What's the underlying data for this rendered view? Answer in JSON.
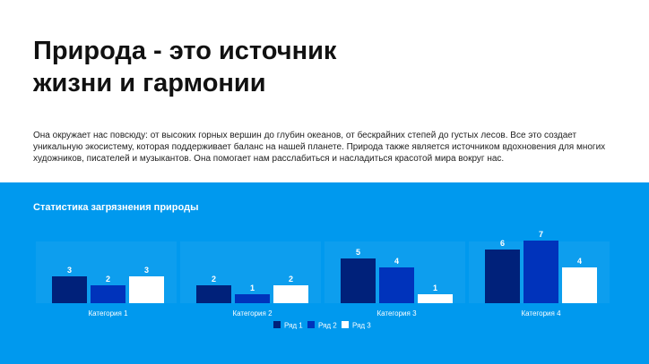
{
  "slide": {
    "title": "Природа - это источник жизни и гармонии",
    "body": "Она окружает нас повсюду: от высоких горных вершин до глубин океанов, от бескрайних степей до густых лесов. Все это создает уникальную экосистему, которая поддерживает баланс на нашей планете. Природа также является источником вдохновения для многих художников, писателей и музыкантов. Она помогает нам расслабиться и насладиться красотой мира вокруг нас."
  },
  "colors": {
    "panel_background": "#0099ee",
    "series": [
      "#00217a",
      "#0033bb",
      "#ffffff"
    ],
    "text_light": "#ffffff"
  },
  "chart_data": {
    "type": "bar",
    "title": "Статистика загрязнения природы",
    "categories": [
      "Категория 1",
      "Категория 2",
      "Категория 3",
      "Категория 4"
    ],
    "series": [
      {
        "name": "Ряд 1",
        "values": [
          3,
          2,
          5,
          6
        ]
      },
      {
        "name": "Ряд 2",
        "values": [
          2,
          1,
          4,
          7
        ]
      },
      {
        "name": "Ряд 3",
        "values": [
          3,
          2,
          1,
          4
        ]
      }
    ],
    "data_labels": true,
    "ylim": [
      0,
      7
    ],
    "grid": false,
    "legend": "bottom-center"
  }
}
